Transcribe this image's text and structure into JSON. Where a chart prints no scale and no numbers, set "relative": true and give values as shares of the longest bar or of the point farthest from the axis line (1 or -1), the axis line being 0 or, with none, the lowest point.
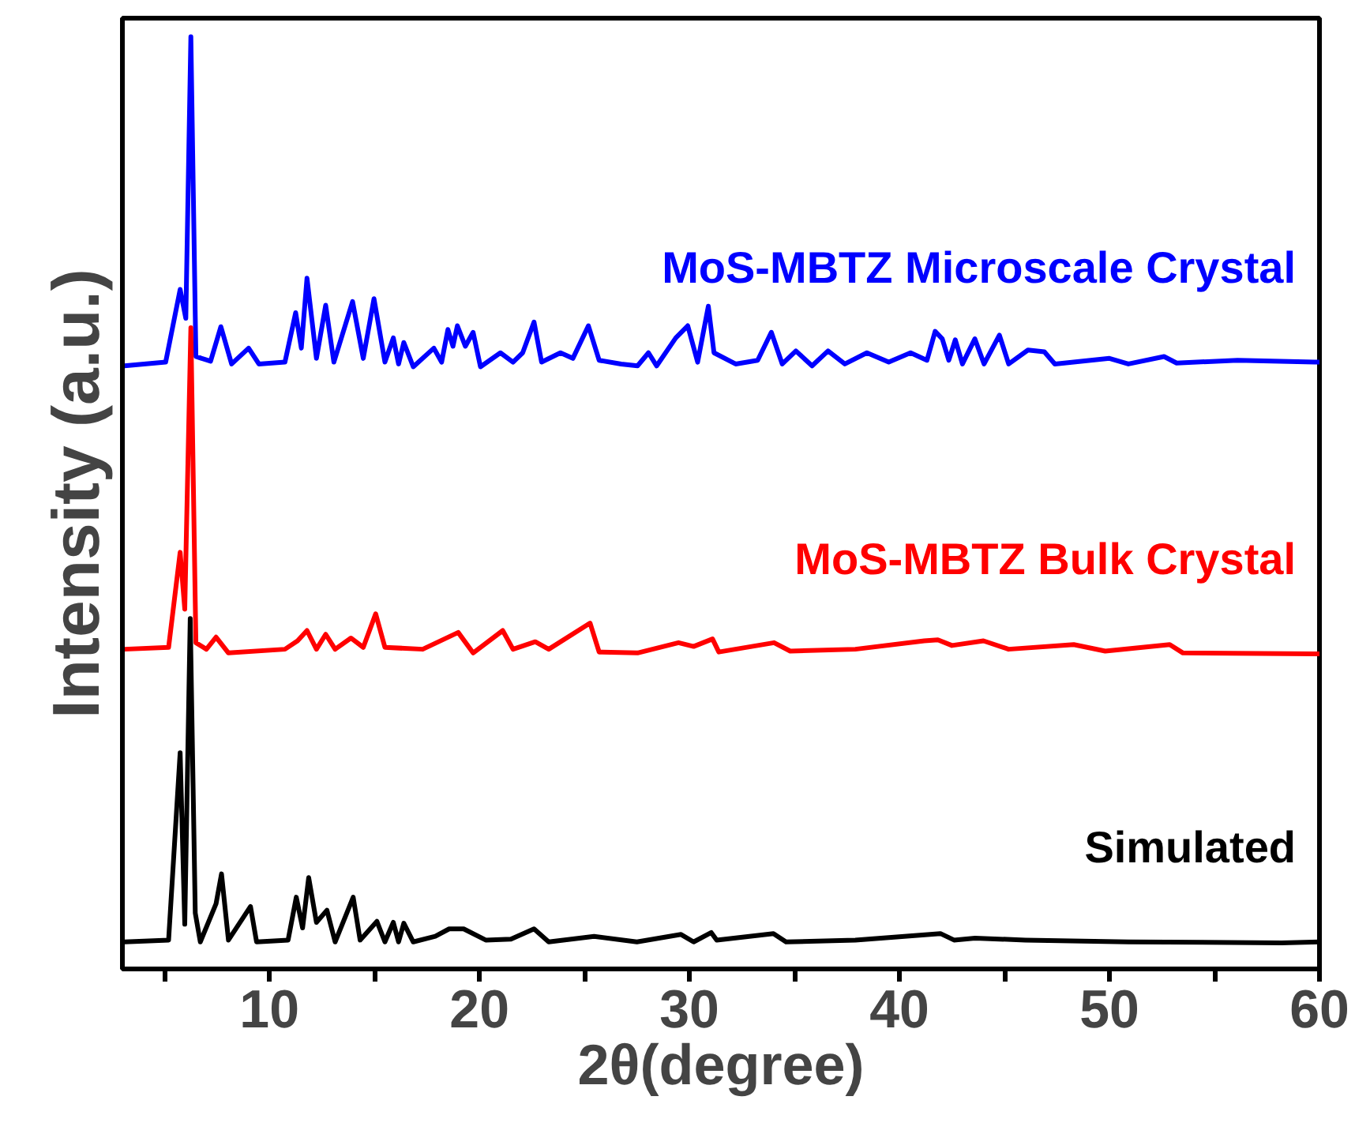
{
  "chart_data": {
    "type": "line",
    "relative": true,
    "xlabel": "2θ(degree)",
    "ylabel": "Intensity (a.u.)",
    "xlim": [
      3,
      60
    ],
    "xticks": [
      {
        "value": 5,
        "label": null
      },
      10,
      {
        "value": 15,
        "label": null
      },
      20,
      {
        "value": 25,
        "label": null
      },
      30,
      {
        "value": 35,
        "label": null
      },
      40,
      {
        "value": 45,
        "label": null
      },
      50,
      {
        "value": 55,
        "label": null
      },
      60
    ],
    "grid": false,
    "legend": false,
    "marker": "none",
    "line_style": "solid",
    "series": [
      {
        "name": "MoS-MBTZ Microscale Crystal",
        "color": "#0000ff",
        "x": [
          3.1,
          5.06,
          5.75,
          6.02,
          6.26,
          6.5,
          7.2,
          7.69,
          8.2,
          9.01,
          9.5,
          10.74,
          11.25,
          11.52,
          11.79,
          12.24,
          12.68,
          13.07,
          13.96,
          14.47,
          14.98,
          15.5,
          15.9,
          16.15,
          16.4,
          16.85,
          17.83,
          18.2,
          18.5,
          18.74,
          18.95,
          19.33,
          19.7,
          20.05,
          21.0,
          21.6,
          22.06,
          22.6,
          22.96,
          23.86,
          24.45,
          25.19,
          25.7,
          26.75,
          27.53,
          28.05,
          28.44,
          29.35,
          29.92,
          30.39,
          30.9,
          31.17,
          32.2,
          33.25,
          33.9,
          34.42,
          35.07,
          35.84,
          36.6,
          37.4,
          38.45,
          39.49,
          40.53,
          41.31,
          41.7,
          42.04,
          42.35,
          42.66,
          43.0,
          43.59,
          44.03,
          44.76,
          45.2,
          46.12,
          46.9,
          47.4,
          50.0,
          50.9,
          52.6,
          53.2,
          56.1,
          59.76,
          60
        ],
        "values": [
          0.647,
          0.651,
          0.729,
          0.698,
          1.0,
          0.657,
          0.652,
          0.689,
          0.649,
          0.666,
          0.649,
          0.651,
          0.704,
          0.666,
          0.741,
          0.655,
          0.712,
          0.651,
          0.716,
          0.655,
          0.719,
          0.651,
          0.677,
          0.649,
          0.672,
          0.646,
          0.666,
          0.651,
          0.686,
          0.668,
          0.69,
          0.668,
          0.683,
          0.646,
          0.661,
          0.651,
          0.661,
          0.694,
          0.651,
          0.661,
          0.655,
          0.69,
          0.653,
          0.649,
          0.647,
          0.661,
          0.647,
          0.677,
          0.69,
          0.651,
          0.711,
          0.661,
          0.649,
          0.653,
          0.683,
          0.649,
          0.663,
          0.647,
          0.663,
          0.649,
          0.661,
          0.651,
          0.661,
          0.653,
          0.684,
          0.676,
          0.653,
          0.675,
          0.649,
          0.676,
          0.649,
          0.68,
          0.649,
          0.664,
          0.662,
          0.649,
          0.655,
          0.649,
          0.657,
          0.65,
          0.653,
          0.651,
          0.651
        ]
      },
      {
        "name": "MoS-MBTZ Bulk Crystal",
        "color": "#ff0000",
        "x": [
          3.1,
          5.2,
          5.75,
          5.97,
          6.26,
          6.5,
          7.0,
          7.46,
          8.05,
          10.74,
          11.34,
          11.79,
          12.24,
          12.68,
          13.13,
          13.88,
          14.47,
          15.06,
          15.5,
          17.3,
          18.99,
          19.7,
          21.11,
          21.6,
          22.66,
          23.3,
          25.27,
          25.7,
          27.53,
          29.48,
          30.2,
          31.1,
          31.4,
          34.03,
          34.8,
          37.9,
          41.18,
          41.83,
          42.5,
          44.0,
          45.2,
          48.3,
          49.8,
          52.87,
          53.5,
          59.76,
          60
        ],
        "values": [
          0.343,
          0.345,
          0.447,
          0.386,
          0.688,
          0.35,
          0.343,
          0.356,
          0.339,
          0.343,
          0.352,
          0.363,
          0.343,
          0.359,
          0.343,
          0.355,
          0.345,
          0.381,
          0.345,
          0.343,
          0.361,
          0.339,
          0.363,
          0.343,
          0.351,
          0.343,
          0.371,
          0.34,
          0.339,
          0.35,
          0.346,
          0.354,
          0.34,
          0.35,
          0.341,
          0.343,
          0.352,
          0.353,
          0.347,
          0.352,
          0.343,
          0.348,
          0.341,
          0.348,
          0.339,
          0.338,
          0.338
        ]
      },
      {
        "name": "Simulated",
        "color": "#000000",
        "x": [
          3.1,
          5.2,
          5.75,
          5.97,
          6.23,
          6.47,
          6.71,
          7.46,
          7.72,
          8.05,
          9.1,
          9.39,
          10.89,
          11.28,
          11.58,
          11.87,
          12.24,
          12.74,
          13.13,
          13.99,
          14.32,
          15.12,
          15.5,
          15.9,
          16.15,
          16.4,
          16.85,
          17.9,
          18.56,
          19.25,
          20.3,
          21.5,
          22.6,
          23.3,
          25.46,
          27.5,
          29.6,
          30.2,
          31.04,
          31.3,
          34.0,
          34.6,
          37.9,
          41.95,
          42.6,
          43.6,
          46.0,
          50.9,
          58.2,
          60
        ],
        "values": [
          0.029,
          0.031,
          0.232,
          0.048,
          0.376,
          0.06,
          0.029,
          0.07,
          0.102,
          0.031,
          0.067,
          0.029,
          0.031,
          0.077,
          0.044,
          0.098,
          0.05,
          0.063,
          0.029,
          0.077,
          0.031,
          0.051,
          0.029,
          0.05,
          0.029,
          0.049,
          0.029,
          0.035,
          0.043,
          0.043,
          0.031,
          0.032,
          0.043,
          0.029,
          0.035,
          0.029,
          0.037,
          0.029,
          0.039,
          0.031,
          0.038,
          0.029,
          0.031,
          0.038,
          0.031,
          0.033,
          0.031,
          0.029,
          0.028,
          0.029
        ]
      }
    ]
  }
}
